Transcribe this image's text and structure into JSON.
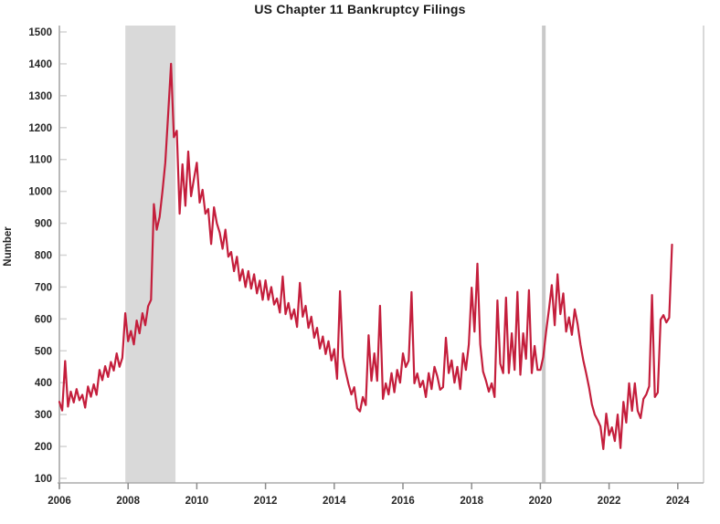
{
  "title": "US Chapter 11 Bankruptcy Filings",
  "chart_data": {
    "type": "line",
    "title": "US Chapter 11 Bankruptcy Filings",
    "xlabel": "",
    "ylabel": "Number",
    "x_ticks": [
      2006,
      2008,
      2010,
      2012,
      2014,
      2016,
      2018,
      2020,
      2022,
      2024
    ],
    "y_ticks": [
      100,
      200,
      300,
      400,
      500,
      600,
      700,
      800,
      900,
      1000,
      1100,
      1200,
      1300,
      1400,
      1500
    ],
    "ylim": [
      100,
      1500
    ],
    "xlim": [
      2006,
      2024.75
    ],
    "grid": false,
    "legend": "none",
    "x_unit": "monthly, Jan 2006 through Nov 2023",
    "x_start": 2006.0,
    "x_step_years": 0.0833333,
    "line_color": "#c41e3c",
    "recession_band": {
      "start": 2007.92,
      "end": 2009.38,
      "color": "#d9d9d9"
    },
    "vertical_marker": {
      "x": 2020.1,
      "color": "#c9c9c9"
    },
    "series": [
      {
        "name": "US Chapter 11 bankruptcy filings",
        "values": [
          340,
          313,
          468,
          325,
          372,
          338,
          380,
          345,
          362,
          322,
          388,
          356,
          395,
          362,
          440,
          408,
          452,
          418,
          465,
          438,
          492,
          450,
          478,
          618,
          530,
          562,
          520,
          595,
          555,
          618,
          580,
          640,
          660,
          960,
          880,
          920,
          1000,
          1090,
          1245,
          1400,
          1170,
          1190,
          930,
          1085,
          955,
          1125,
          985,
          1040,
          1090,
          965,
          1005,
          930,
          945,
          835,
          950,
          900,
          870,
          820,
          880,
          795,
          810,
          750,
          795,
          720,
          755,
          700,
          750,
          695,
          740,
          680,
          720,
          660,
          721,
          660,
          700,
          645,
          664,
          620,
          733,
          615,
          650,
          600,
          630,
          575,
          713,
          607,
          641,
          572,
          607,
          541,
          572,
          507,
          545,
          490,
          530,
          470,
          505,
          412,
          687,
          480,
          435,
          395,
          363,
          386,
          320,
          310,
          355,
          330,
          549,
          406,
          492,
          406,
          641,
          349,
          398,
          363,
          430,
          370,
          440,
          400,
          492,
          449,
          469,
          684,
          398,
          429,
          386,
          406,
          355,
          430,
          380,
          450,
          420,
          378,
          386,
          541,
          430,
          470,
          400,
          450,
          380,
          492,
          440,
          520,
          698,
          560,
          773,
          520,
          435,
          406,
          372,
          398,
          355,
          658,
          460,
          430,
          667,
          430,
          555,
          440,
          685,
          425,
          555,
          475,
          690,
          430,
          515,
          440,
          440,
          480,
          560,
          630,
          706,
          580,
          740,
          615,
          680,
          560,
          605,
          550,
          630,
          585,
          520,
          470,
          430,
          385,
          332,
          300,
          283,
          263,
          192,
          303,
          235,
          260,
          217,
          300,
          195,
          340,
          275,
          398,
          312,
          398,
          312,
          289,
          349,
          363,
          389,
          675,
          355,
          369,
          598,
          612,
          589,
          604,
          833
        ]
      }
    ]
  }
}
